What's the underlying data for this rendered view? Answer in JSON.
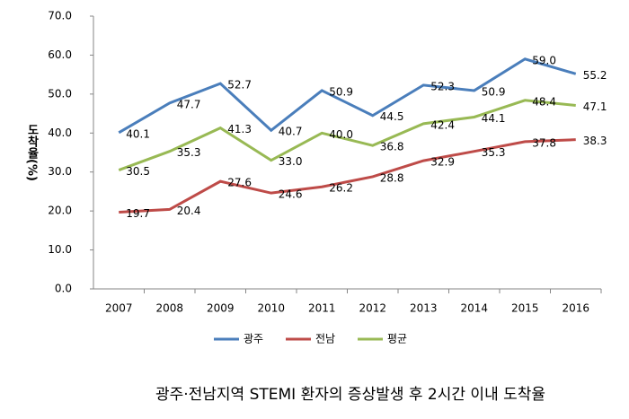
{
  "chart_data": {
    "type": "line",
    "caption": "광주·전남지역 STEMI 환자의 증상발생 후 2시간 이내 도착율",
    "y_label": "도착율(%)",
    "categories": [
      "2007",
      "2008",
      "2009",
      "2010",
      "2011",
      "2012",
      "2013",
      "2014",
      "2015",
      "2016"
    ],
    "series": [
      {
        "name": "광주",
        "color": "#4a7ebb",
        "values": [
          40.1,
          47.7,
          52.7,
          40.7,
          50.9,
          44.5,
          52.3,
          50.9,
          59.0,
          55.2
        ],
        "value_labels": [
          "40.1",
          "47.7",
          "52.7",
          "40.7",
          "50.9",
          "44.5",
          "52.3",
          "50.9",
          "59.0",
          "55.2"
        ]
      },
      {
        "name": "전남",
        "color": "#be4b48",
        "values": [
          19.7,
          20.4,
          27.6,
          24.6,
          26.2,
          28.8,
          32.9,
          35.3,
          37.8,
          38.3
        ],
        "value_labels": [
          "19.7",
          "20.4",
          "27.6",
          "24.6",
          "26.2",
          "28.8",
          "32.9",
          "35.3",
          "37.8",
          "38.3"
        ]
      },
      {
        "name": "평균",
        "color": "#98b954",
        "values": [
          30.5,
          35.3,
          41.3,
          33.0,
          40.0,
          36.8,
          42.4,
          44.1,
          48.4,
          47.1
        ],
        "value_labels": [
          "30.5",
          "35.3",
          "41.3",
          "33.0",
          "40.0",
          "36.8",
          "42.4",
          "44.1",
          "48.4",
          "47.1"
        ]
      }
    ],
    "ylim": [
      0,
      70
    ],
    "yticks": [
      {
        "value": 0,
        "label": "0.0"
      },
      {
        "value": 10,
        "label": "10.0"
      },
      {
        "value": 20,
        "label": "20.0"
      },
      {
        "value": 30,
        "label": "30.0"
      },
      {
        "value": 40,
        "label": "40.0"
      },
      {
        "value": 50,
        "label": "50.0"
      },
      {
        "value": 60,
        "label": "60.0"
      },
      {
        "value": 70,
        "label": "70.0"
      }
    ],
    "grid": false,
    "legend": "bottom"
  }
}
